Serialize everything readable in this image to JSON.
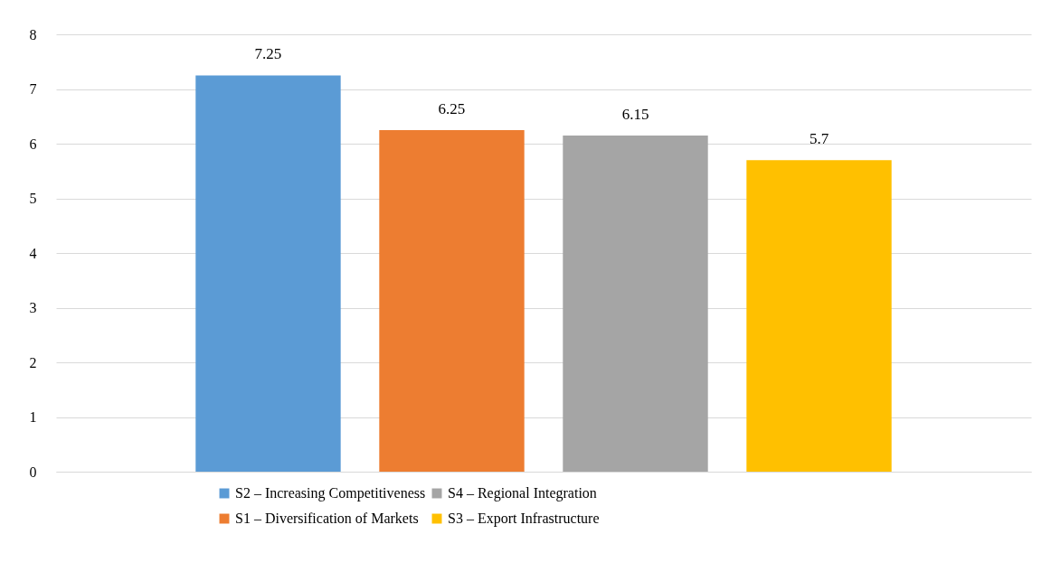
{
  "chart_data": {
    "type": "bar",
    "categories": [
      null
    ],
    "series": [
      {
        "name": "S2 – Increasing Competitiveness",
        "color": "#5b9bd5",
        "values": [
          7.25
        ]
      },
      {
        "name": "S1 – Diversification of Markets",
        "color": "#ed7d31",
        "values": [
          6.25
        ]
      },
      {
        "name": "S4 – Regional Integration",
        "color": "#a5a5a5",
        "values": [
          6.15
        ]
      },
      {
        "name": "S3 – Export Infrastructure",
        "color": "#ffc000",
        "values": [
          5.7
        ]
      }
    ],
    "ylim": [
      0,
      8
    ],
    "yticks": [
      0,
      1,
      2,
      3,
      4,
      5,
      6,
      7,
      8
    ],
    "grid": "y",
    "legend": "bottom",
    "data_labels": true,
    "tick_labels": "y"
  }
}
